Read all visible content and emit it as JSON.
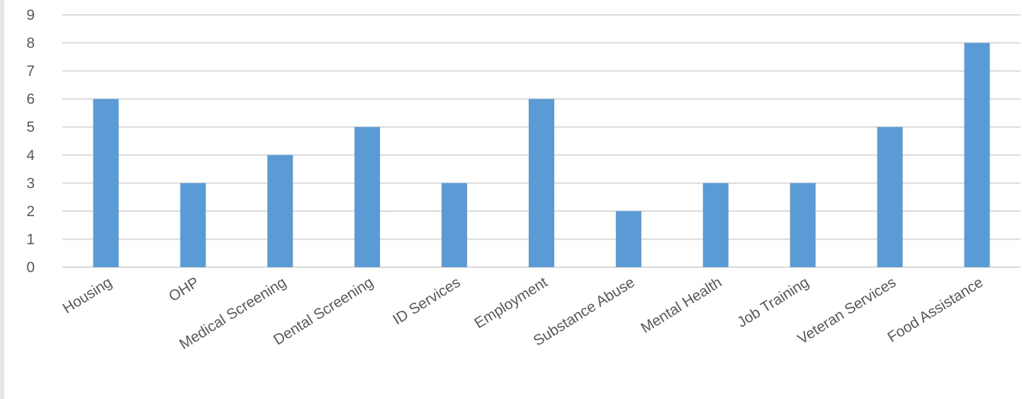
{
  "chart_data": {
    "type": "bar",
    "categories": [
      "Housing",
      "OHP",
      "Medical Screening",
      "Dental Screening",
      "ID Services",
      "Employment",
      "Substance Abuse",
      "Mental Health",
      "Job Training",
      "Veteran Services",
      "Food Assistance"
    ],
    "values": [
      6,
      3,
      4,
      5,
      3,
      6,
      2,
      3,
      3,
      5,
      8
    ],
    "title": "",
    "xlabel": "",
    "ylabel": "",
    "ylim": [
      0,
      9
    ],
    "yticks": [
      "0",
      "1",
      "2",
      "3",
      "4",
      "5",
      "6",
      "7",
      "8",
      "9"
    ],
    "grid": true,
    "bar_color": "#5b9bd5",
    "grid_color": "#d9d9d9"
  }
}
